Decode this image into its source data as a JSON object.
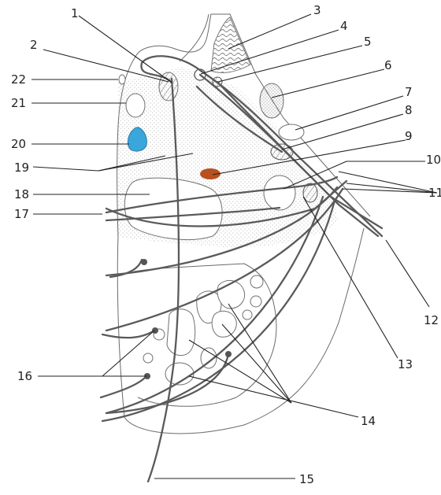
{
  "labels": {
    "l1": "1",
    "l2": "2",
    "l3": "3",
    "l4": "4",
    "l5": "5",
    "l6": "6",
    "l7": "7",
    "l8": "8",
    "l9": "9",
    "l10": "10",
    "l11": "11",
    "l12": "12",
    "l13": "13",
    "l14": "14",
    "l15": "15",
    "l16": "16",
    "l17": "17",
    "l18": "18",
    "l19": "19",
    "l20": "20",
    "l21": "21",
    "l22": "22"
  },
  "colors": {
    "stipple": "#9a9a9a",
    "nerve": "#5a5a5a",
    "blue_structure": "#3aa7dc",
    "orange_structure": "#b8501f",
    "label": "#222222"
  }
}
